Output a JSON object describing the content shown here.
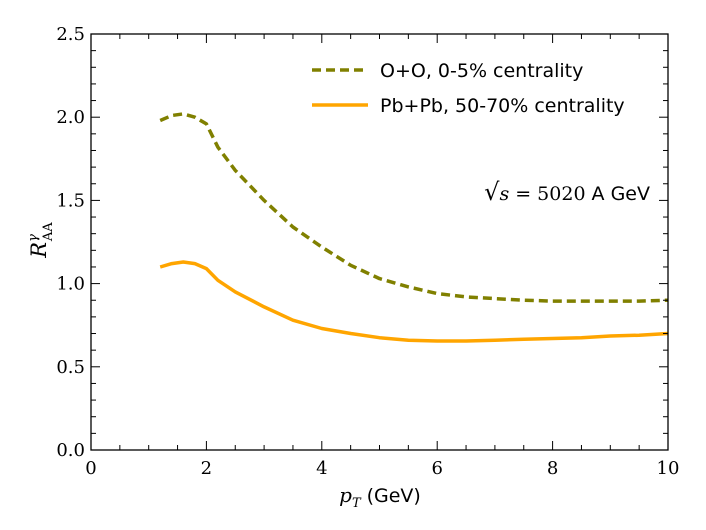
{
  "chart_data": {
    "type": "line",
    "title": "",
    "xlabel_var": "p",
    "xlabel_sub": "T",
    "xlabel_unit": "(GeV)",
    "ylabel_main": "R",
    "ylabel_sup": "γ",
    "ylabel_sub": "AA",
    "xlim": [
      0,
      10
    ],
    "ylim": [
      0,
      2.5
    ],
    "xticks": [
      0,
      2,
      4,
      6,
      8,
      10
    ],
    "xtick_labels": [
      "0",
      "2",
      "4",
      "6",
      "8",
      "10"
    ],
    "yticks": [
      0,
      0.5,
      1.0,
      1.5,
      2.0,
      2.5
    ],
    "ytick_labels": [
      "0.0",
      "0.5",
      "1.0",
      "1.5",
      "2.0",
      "2.5"
    ],
    "legend_position": "top-right",
    "annotation": {
      "sqrt_symbol": "√",
      "var": "s",
      "equals_value": "= 5020",
      "unit": "A GeV"
    },
    "series": [
      {
        "name": "O+O, 0-5% centrality",
        "color": "#808000",
        "style": "dashed",
        "x": [
          1.2,
          1.4,
          1.6,
          1.8,
          2.0,
          2.2,
          2.5,
          3.0,
          3.5,
          4.0,
          4.5,
          5.0,
          5.5,
          6.0,
          6.5,
          7.0,
          7.5,
          8.0,
          8.5,
          9.0,
          9.5,
          10.0
        ],
        "y": [
          1.98,
          2.01,
          2.02,
          2.0,
          1.96,
          1.82,
          1.68,
          1.5,
          1.34,
          1.22,
          1.11,
          1.03,
          0.98,
          0.94,
          0.92,
          0.91,
          0.9,
          0.895,
          0.895,
          0.895,
          0.895,
          0.9
        ]
      },
      {
        "name": "Pb+Pb, 50-70% centrality",
        "color": "#FFA500",
        "style": "solid",
        "x": [
          1.2,
          1.4,
          1.6,
          1.8,
          2.0,
          2.2,
          2.5,
          3.0,
          3.5,
          4.0,
          4.5,
          5.0,
          5.5,
          6.0,
          6.5,
          7.0,
          7.5,
          8.0,
          8.5,
          9.0,
          9.5,
          10.0
        ],
        "y": [
          1.1,
          1.12,
          1.13,
          1.12,
          1.09,
          1.02,
          0.95,
          0.86,
          0.78,
          0.73,
          0.7,
          0.675,
          0.66,
          0.655,
          0.655,
          0.66,
          0.665,
          0.67,
          0.675,
          0.685,
          0.69,
          0.7
        ]
      }
    ]
  }
}
